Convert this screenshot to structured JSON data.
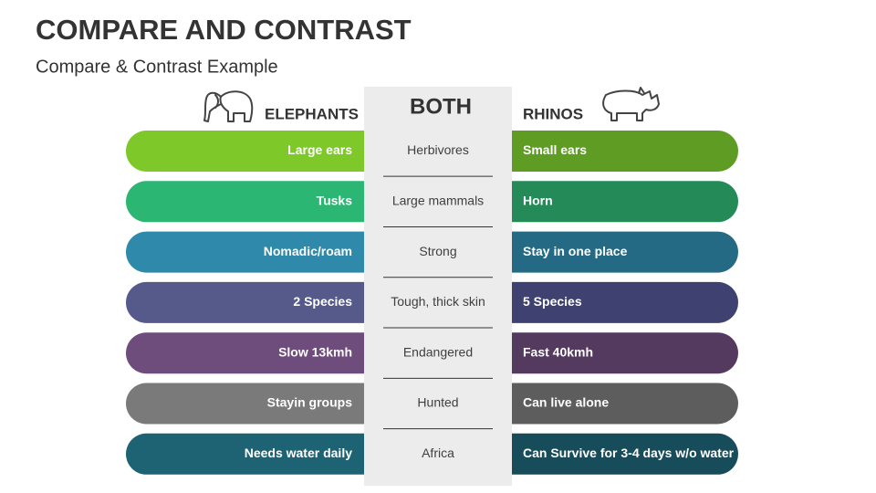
{
  "header": {
    "title": "COMPARE AND CONTRAST",
    "subtitle": "Compare & Contrast Example"
  },
  "columns": {
    "left": "ELEPHANTS",
    "middle": "BOTH",
    "right": "RHINOS"
  },
  "rows": [
    {
      "elephants": "Large ears",
      "both": "Herbivores",
      "rhinos": "Small ears"
    },
    {
      "elephants": "Tusks",
      "both": "Large mammals",
      "rhinos": "Horn"
    },
    {
      "elephants": "Nomadic/roam",
      "both": "Strong",
      "rhinos": "Stay in one place"
    },
    {
      "elephants": "2 Species",
      "both": "Tough, thick skin",
      "rhinos": "5 Species"
    },
    {
      "elephants": "Slow 13kmh",
      "both": "Endangered",
      "rhinos": "Fast 40kmh"
    },
    {
      "elephants": "Stayin groups",
      "both": "Hunted",
      "rhinos": "Can live alone"
    },
    {
      "elephants": "Needs water daily",
      "both": "Africa",
      "rhinos": "Can Survive for 3-4 days w/o water"
    }
  ]
}
